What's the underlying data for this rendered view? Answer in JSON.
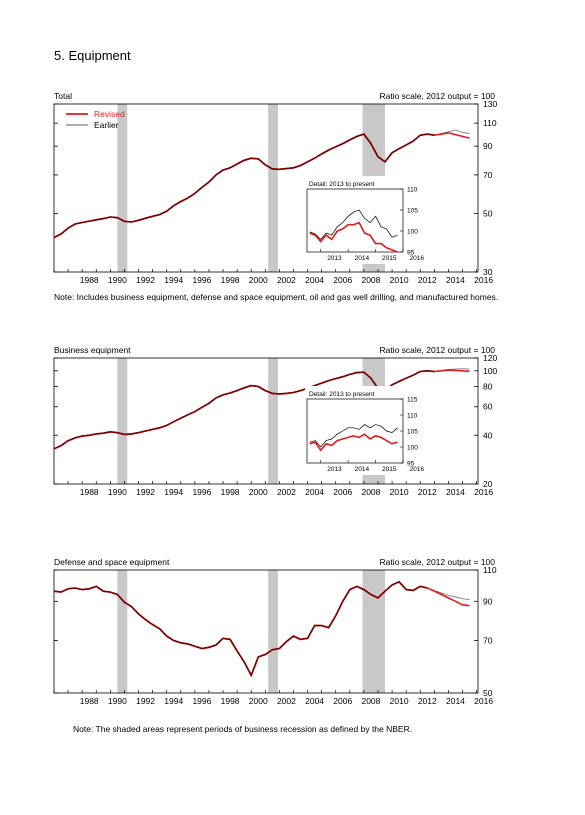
{
  "page_title": "5. Equipment",
  "note1": "Note: Includes business equipment, defense and space equipment, oil and gas well drilling, and manufactured homes.",
  "note2": "Note: The shaded areas represent periods of business recession as defined by the NBER.",
  "colors": {
    "revised": "#e31a1c",
    "earlier": "#7f7f7f",
    "actual": "#7a0000",
    "recession": "#c8c8c8"
  },
  "chart_data": [
    {
      "type": "line",
      "title": "Total",
      "scale_label": "Ratio scale, 2012 output = 100",
      "log_scale": true,
      "ylim": [
        30,
        130
      ],
      "yticks": [
        30,
        50,
        70,
        90,
        110,
        130
      ],
      "xlim": [
        1986.0,
        2016.1
      ],
      "xticks": [
        "1988",
        "1990",
        "1992",
        "1994",
        "1996",
        "1998",
        "2000",
        "2002",
        "2004",
        "2006",
        "2008",
        "2010",
        "2012",
        "2014",
        "2016"
      ],
      "recessions": [
        [
          1990.5,
          1991.2
        ],
        [
          2001.2,
          2001.9
        ],
        [
          2007.9,
          2009.5
        ]
      ],
      "legend": {
        "placement": "top-left",
        "entries": [
          "Revised",
          "Earlier"
        ]
      },
      "x": [
        1986.0,
        1986.5,
        1987.0,
        1987.5,
        1988.0,
        1988.5,
        1989.0,
        1989.5,
        1990.0,
        1990.5,
        1991.0,
        1991.5,
        1992.0,
        1992.5,
        1993.0,
        1993.5,
        1994.0,
        1994.5,
        1995.0,
        1995.5,
        1996.0,
        1996.5,
        1997.0,
        1997.5,
        1998.0,
        1998.5,
        1999.0,
        1999.5,
        2000.0,
        2000.5,
        2001.0,
        2001.5,
        2002.0,
        2002.5,
        2003.0,
        2003.5,
        2004.0,
        2004.5,
        2005.0,
        2005.5,
        2006.0,
        2006.5,
        2007.0,
        2007.5,
        2008.0,
        2008.5,
        2009.0,
        2009.5,
        2010.0,
        2010.5,
        2011.0,
        2011.5,
        2012.0,
        2012.5,
        2013.0,
        2013.5,
        2014.0,
        2014.5,
        2015.0,
        2015.5
      ],
      "series": [
        {
          "name": "Revised",
          "values": [
            40.5,
            41.8,
            44.0,
            45.6,
            46.2,
            46.8,
            47.3,
            47.8,
            48.5,
            48.2,
            46.7,
            46.4,
            47.1,
            48.0,
            48.8,
            49.5,
            51.0,
            53.5,
            55.5,
            57.2,
            59.6,
            62.8,
            65.8,
            70.0,
            73.0,
            74.5,
            77.0,
            79.5,
            81.0,
            80.5,
            76.5,
            73.8,
            73.5,
            74.0,
            74.5,
            76.0,
            78.5,
            81.0,
            84.0,
            87.0,
            89.5,
            92.0,
            95.0,
            98.0,
            100.0,
            92.0,
            82.0,
            78.5,
            85.0,
            88.0,
            91.0,
            94.0,
            99.0,
            100.0,
            99.0,
            100.0,
            101.0,
            99.5,
            98.0,
            96.5
          ]
        },
        {
          "name": "Earlier",
          "values": [
            40.5,
            41.8,
            44.0,
            45.6,
            46.2,
            46.8,
            47.3,
            47.8,
            48.5,
            48.2,
            46.7,
            46.4,
            47.1,
            48.0,
            48.8,
            49.5,
            51.0,
            53.5,
            55.5,
            57.2,
            59.6,
            62.8,
            65.8,
            70.0,
            73.0,
            74.5,
            77.0,
            79.5,
            81.0,
            80.5,
            76.5,
            73.8,
            73.5,
            74.0,
            74.5,
            76.0,
            78.5,
            81.0,
            84.0,
            87.0,
            89.5,
            92.0,
            95.0,
            98.0,
            100.0,
            92.0,
            82.0,
            78.5,
            85.0,
            88.0,
            91.0,
            94.0,
            99.0,
            100.0,
            99.0,
            100.5,
            102.0,
            103.5,
            101.5,
            100.5
          ]
        }
      ],
      "inset": {
        "title": "Detail: 2013 to present",
        "ylim": [
          95,
          110
        ],
        "yticks": [
          95,
          100,
          105,
          110
        ],
        "xlim": [
          2012.5,
          2016.0
        ],
        "xticks": [
          "2013",
          "2014",
          "2015",
          "2016"
        ],
        "x": [
          2012.6,
          2012.8,
          2013.0,
          2013.2,
          2013.4,
          2013.6,
          2013.8,
          2014.0,
          2014.2,
          2014.4,
          2014.6,
          2014.8,
          2015.0,
          2015.2,
          2015.4,
          2015.6,
          2015.8
        ],
        "series": [
          {
            "name": "Revised",
            "values": [
              99.5,
              99.0,
              97.5,
              99.0,
              98.0,
              100.0,
              100.5,
              101.5,
              101.5,
              102.0,
              99.5,
              99.0,
              97.0,
              97.0,
              96.0,
              95.5,
              95.0
            ]
          },
          {
            "name": "Earlier",
            "values": [
              99.8,
              99.3,
              98.0,
              99.5,
              99.0,
              101.0,
              102.0,
              103.5,
              104.5,
              105.0,
              103.0,
              102.0,
              103.5,
              101.0,
              100.5,
              98.5,
              99.0
            ]
          }
        ]
      }
    },
    {
      "type": "line",
      "title": "Business equipment",
      "scale_label": "Ratio scale, 2012 output = 100",
      "log_scale": true,
      "ylim": [
        20,
        120
      ],
      "yticks": [
        20,
        40,
        60,
        80,
        100,
        120
      ],
      "xlim": [
        1986.0,
        2016.1
      ],
      "xticks": [
        "1988",
        "1990",
        "1992",
        "1994",
        "1996",
        "1998",
        "2000",
        "2002",
        "2004",
        "2006",
        "2008",
        "2010",
        "2012",
        "2014",
        "2016"
      ],
      "recessions": [
        [
          1990.5,
          1991.2
        ],
        [
          2001.2,
          2001.9
        ],
        [
          2007.9,
          2009.5
        ]
      ],
      "x": [
        1986.0,
        1986.5,
        1987.0,
        1987.5,
        1988.0,
        1988.5,
        1989.0,
        1989.5,
        1990.0,
        1990.5,
        1991.0,
        1991.5,
        1992.0,
        1992.5,
        1993.0,
        1993.5,
        1994.0,
        1994.5,
        1995.0,
        1995.5,
        1996.0,
        1996.5,
        1997.0,
        1997.5,
        1998.0,
        1998.5,
        1999.0,
        1999.5,
        2000.0,
        2000.5,
        2001.0,
        2001.5,
        2002.0,
        2002.5,
        2003.0,
        2003.5,
        2004.0,
        2004.5,
        2005.0,
        2005.5,
        2006.0,
        2006.5,
        2007.0,
        2007.5,
        2008.0,
        2008.5,
        2009.0,
        2009.5,
        2010.0,
        2010.5,
        2011.0,
        2011.5,
        2012.0,
        2012.5,
        2013.0,
        2013.5,
        2014.0,
        2014.5,
        2015.0,
        2015.5
      ],
      "series": [
        {
          "name": "Revised",
          "values": [
            33.0,
            34.5,
            37.0,
            38.5,
            39.5,
            40.0,
            40.8,
            41.2,
            42.0,
            41.5,
            40.5,
            40.8,
            41.5,
            42.5,
            43.5,
            44.5,
            46.0,
            48.5,
            51.0,
            53.5,
            56.0,
            59.5,
            63.0,
            68.0,
            71.0,
            73.0,
            75.5,
            78.5,
            81.0,
            80.0,
            75.5,
            72.5,
            72.0,
            72.5,
            73.5,
            75.5,
            78.0,
            81.0,
            84.0,
            87.0,
            89.5,
            92.0,
            95.0,
            97.5,
            98.0,
            90.0,
            78.0,
            75.5,
            82.0,
            86.0,
            90.0,
            94.0,
            99.0,
            100.0,
            99.0,
            100.0,
            101.0,
            100.5,
            100.0,
            99.5
          ]
        },
        {
          "name": "Earlier",
          "values": [
            33.0,
            34.5,
            37.0,
            38.5,
            39.5,
            40.0,
            40.8,
            41.2,
            42.0,
            41.5,
            40.5,
            40.8,
            41.5,
            42.5,
            43.5,
            44.5,
            46.0,
            48.5,
            51.0,
            53.5,
            56.0,
            59.5,
            63.0,
            68.0,
            71.0,
            73.0,
            75.5,
            78.5,
            81.0,
            80.0,
            75.5,
            72.5,
            72.0,
            72.5,
            73.5,
            75.5,
            78.0,
            81.0,
            84.0,
            87.0,
            89.5,
            92.0,
            95.0,
            97.5,
            98.0,
            90.0,
            78.0,
            75.5,
            82.0,
            86.0,
            90.0,
            94.0,
            99.0,
            100.0,
            99.0,
            100.5,
            102.0,
            102.5,
            103.0,
            102.5
          ]
        }
      ],
      "inset": {
        "title": "Detail: 2013 to present",
        "ylim": [
          95,
          115
        ],
        "yticks": [
          95,
          100,
          105,
          110,
          115
        ],
        "xlim": [
          2012.5,
          2016.0
        ],
        "xticks": [
          "2013",
          "2014",
          "2015",
          "2016"
        ],
        "x": [
          2012.6,
          2012.8,
          2013.0,
          2013.2,
          2013.4,
          2013.6,
          2013.8,
          2014.0,
          2014.2,
          2014.4,
          2014.6,
          2014.8,
          2015.0,
          2015.2,
          2015.4,
          2015.6,
          2015.8
        ],
        "series": [
          {
            "name": "Revised",
            "values": [
              101.0,
              101.5,
              99.0,
              101.0,
              100.5,
              102.0,
              102.5,
              103.0,
              103.5,
              103.0,
              104.0,
              102.5,
              103.5,
              103.0,
              102.0,
              101.0,
              101.5
            ]
          },
          {
            "name": "Earlier",
            "values": [
              101.5,
              102.0,
              100.0,
              102.0,
              102.5,
              104.0,
              105.0,
              106.0,
              106.0,
              105.5,
              107.0,
              106.0,
              107.0,
              106.5,
              105.0,
              104.5,
              106.0
            ]
          }
        ]
      }
    },
    {
      "type": "line",
      "title": "Defense and space equipment",
      "scale_label": "Ratio scale, 2012 output = 100",
      "log_scale": true,
      "ylim": [
        50,
        110
      ],
      "yticks": [
        50,
        70,
        90,
        110
      ],
      "xlim": [
        1986.0,
        2016.1
      ],
      "xticks": [
        "1988",
        "1990",
        "1992",
        "1994",
        "1996",
        "1998",
        "2000",
        "2002",
        "2004",
        "2006",
        "2008",
        "2010",
        "2012",
        "2014",
        "2016"
      ],
      "recessions": [
        [
          1990.5,
          1991.2
        ],
        [
          2001.2,
          2001.9
        ],
        [
          2007.9,
          2009.5
        ]
      ],
      "x": [
        1986.0,
        1986.5,
        1987.0,
        1987.5,
        1988.0,
        1988.5,
        1989.0,
        1989.5,
        1990.0,
        1990.5,
        1991.0,
        1991.5,
        1992.0,
        1992.5,
        1993.0,
        1993.5,
        1994.0,
        1994.5,
        1995.0,
        1995.5,
        1996.0,
        1996.5,
        1997.0,
        1997.5,
        1998.0,
        1998.5,
        1999.0,
        1999.5,
        2000.0,
        2000.5,
        2001.0,
        2001.5,
        2002.0,
        2002.5,
        2003.0,
        2003.5,
        2004.0,
        2004.5,
        2005.0,
        2005.5,
        2006.0,
        2006.5,
        2007.0,
        2007.5,
        2008.0,
        2008.5,
        2009.0,
        2009.5,
        2010.0,
        2010.5,
        2011.0,
        2011.5,
        2012.0,
        2012.5,
        2013.0,
        2013.5,
        2014.0,
        2014.5,
        2015.0,
        2015.5
      ],
      "series": [
        {
          "name": "Revised",
          "values": [
            96.0,
            95.5,
            97.5,
            98.0,
            97.0,
            97.5,
            99.0,
            96.0,
            95.5,
            94.0,
            89.5,
            87.0,
            83.0,
            80.0,
            77.5,
            75.5,
            72.0,
            70.0,
            69.0,
            68.5,
            67.5,
            66.5,
            67.0,
            68.0,
            71.0,
            70.5,
            65.5,
            61.0,
            56.0,
            63.0,
            64.0,
            66.0,
            66.5,
            69.5,
            72.0,
            70.5,
            71.0,
            77.0,
            77.0,
            76.0,
            82.0,
            90.0,
            97.0,
            99.0,
            97.0,
            94.0,
            92.0,
            96.0,
            100.0,
            102.0,
            97.0,
            96.5,
            99.0,
            98.0,
            96.0,
            94.0,
            92.0,
            90.0,
            88.0,
            87.5
          ]
        },
        {
          "name": "Earlier",
          "values": [
            96.0,
            95.5,
            97.5,
            98.0,
            97.0,
            97.5,
            99.0,
            96.0,
            95.5,
            94.0,
            89.5,
            87.0,
            83.0,
            80.0,
            77.5,
            75.5,
            72.0,
            70.0,
            69.0,
            68.5,
            67.5,
            66.5,
            67.0,
            68.0,
            71.0,
            70.5,
            65.5,
            61.0,
            56.0,
            63.0,
            64.0,
            66.0,
            66.5,
            69.5,
            72.0,
            70.5,
            71.0,
            77.0,
            77.0,
            76.0,
            82.0,
            90.0,
            97.0,
            99.0,
            97.0,
            94.0,
            92.0,
            96.0,
            100.0,
            102.0,
            97.0,
            96.5,
            99.0,
            98.0,
            96.5,
            95.0,
            93.5,
            92.5,
            91.5,
            91.0
          ]
        }
      ]
    }
  ]
}
